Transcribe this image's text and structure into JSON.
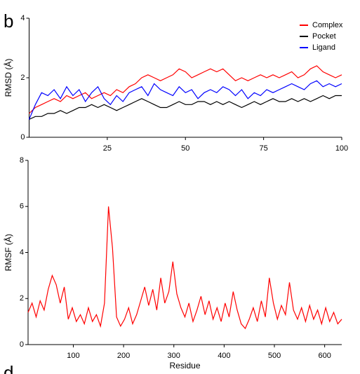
{
  "chart_data": [
    {
      "type": "line",
      "panel_label": "b",
      "y_label": "RMSD (Å)",
      "x": [
        0,
        2,
        4,
        6,
        8,
        10,
        12,
        14,
        16,
        18,
        20,
        22,
        24,
        26,
        28,
        30,
        32,
        34,
        36,
        38,
        40,
        42,
        44,
        46,
        48,
        50,
        52,
        54,
        56,
        58,
        60,
        62,
        64,
        66,
        68,
        70,
        72,
        74,
        76,
        78,
        80,
        82,
        84,
        86,
        88,
        90,
        92,
        94,
        96,
        98,
        100
      ],
      "series": [
        {
          "name": "Complex",
          "color": "#ff0000",
          "values": [
            0.8,
            1.0,
            1.1,
            1.2,
            1.3,
            1.2,
            1.4,
            1.3,
            1.4,
            1.5,
            1.3,
            1.4,
            1.5,
            1.4,
            1.6,
            1.5,
            1.7,
            1.8,
            2.0,
            2.1,
            2.0,
            1.9,
            2.0,
            2.1,
            2.3,
            2.2,
            2.0,
            2.1,
            2.2,
            2.3,
            2.2,
            2.3,
            2.1,
            1.9,
            2.0,
            1.9,
            2.0,
            2.1,
            2.0,
            2.1,
            2.0,
            2.1,
            2.2,
            2.0,
            2.1,
            2.3,
            2.4,
            2.2,
            2.1,
            2.0,
            2.1
          ]
        },
        {
          "name": "Pocket",
          "color": "#000000",
          "values": [
            0.6,
            0.7,
            0.7,
            0.8,
            0.8,
            0.9,
            0.8,
            0.9,
            1.0,
            1.0,
            1.1,
            1.0,
            1.1,
            1.0,
            0.9,
            1.0,
            1.1,
            1.2,
            1.3,
            1.2,
            1.1,
            1.0,
            1.0,
            1.1,
            1.2,
            1.1,
            1.1,
            1.2,
            1.2,
            1.1,
            1.2,
            1.1,
            1.2,
            1.1,
            1.0,
            1.1,
            1.2,
            1.1,
            1.2,
            1.3,
            1.2,
            1.2,
            1.3,
            1.2,
            1.3,
            1.2,
            1.3,
            1.4,
            1.3,
            1.4,
            1.4
          ]
        },
        {
          "name": "Ligand",
          "color": "#0000ff",
          "values": [
            0.6,
            1.1,
            1.5,
            1.4,
            1.6,
            1.3,
            1.7,
            1.4,
            1.6,
            1.2,
            1.5,
            1.7,
            1.3,
            1.1,
            1.4,
            1.2,
            1.5,
            1.6,
            1.7,
            1.4,
            1.8,
            1.6,
            1.5,
            1.4,
            1.7,
            1.5,
            1.6,
            1.3,
            1.5,
            1.6,
            1.5,
            1.7,
            1.6,
            1.4,
            1.6,
            1.3,
            1.5,
            1.4,
            1.6,
            1.5,
            1.6,
            1.7,
            1.8,
            1.7,
            1.6,
            1.8,
            1.9,
            1.7,
            1.8,
            1.7,
            1.8
          ]
        }
      ],
      "xlim": [
        0,
        100
      ],
      "ylim": [
        0,
        4
      ],
      "xticks": [
        25,
        50,
        75,
        100
      ],
      "yticks": [
        0,
        2,
        4
      ],
      "legend": "upper right"
    },
    {
      "type": "line",
      "panel_label": "d",
      "y_label": "RMSF (Å)",
      "x_label": "Residue",
      "x": [
        10,
        18,
        26,
        34,
        42,
        50,
        58,
        66,
        74,
        82,
        90,
        98,
        106,
        114,
        122,
        130,
        138,
        146,
        154,
        162,
        170,
        178,
        186,
        194,
        202,
        210,
        218,
        226,
        234,
        242,
        250,
        258,
        266,
        274,
        282,
        290,
        298,
        306,
        314,
        322,
        330,
        338,
        346,
        354,
        362,
        370,
        378,
        386,
        394,
        402,
        410,
        418,
        426,
        434,
        442,
        450,
        458,
        466,
        474,
        482,
        490,
        498,
        506,
        514,
        522,
        530,
        538,
        546,
        554,
        562,
        570,
        578,
        586,
        594,
        602,
        610,
        618,
        626,
        634
      ],
      "values": [
        1.4,
        1.8,
        1.2,
        1.9,
        1.5,
        2.4,
        3.0,
        2.6,
        1.8,
        2.5,
        1.1,
        1.6,
        1.0,
        1.3,
        0.9,
        1.6,
        1.0,
        1.3,
        0.8,
        1.8,
        6.0,
        4.2,
        1.2,
        0.8,
        1.1,
        1.6,
        0.9,
        1.3,
        1.9,
        2.5,
        1.7,
        2.4,
        1.5,
        2.9,
        1.8,
        2.3,
        3.6,
        2.2,
        1.6,
        1.2,
        1.8,
        1.0,
        1.5,
        2.1,
        1.3,
        1.9,
        1.1,
        1.6,
        1.0,
        1.8,
        1.2,
        2.3,
        1.5,
        0.9,
        0.7,
        1.1,
        1.6,
        1.0,
        1.9,
        1.2,
        2.9,
        1.8,
        1.1,
        1.7,
        1.3,
        2.7,
        1.5,
        1.1,
        1.6,
        1.0,
        1.7,
        1.1,
        1.5,
        0.9,
        1.6,
        1.0,
        1.4,
        0.9,
        1.1
      ],
      "color": "#ff0000",
      "xlim": [
        10,
        634
      ],
      "ylim": [
        0,
        8
      ],
      "xticks": [
        100,
        200,
        300,
        400,
        500,
        600
      ],
      "yticks": [
        0,
        2,
        4,
        6,
        8
      ]
    }
  ]
}
